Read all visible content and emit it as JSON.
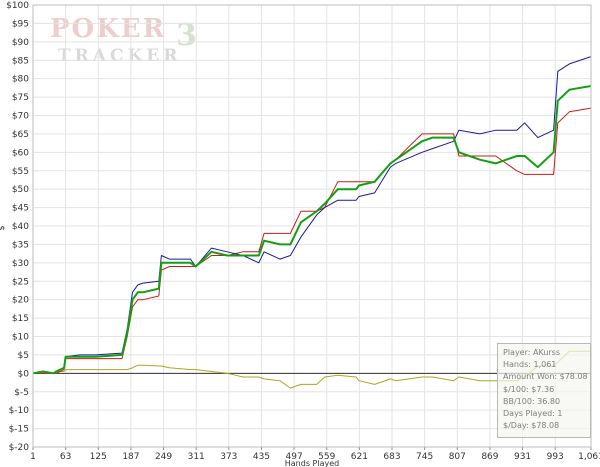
{
  "logo": {
    "top": "POKER",
    "bottom": "TRACKER",
    "version": "3"
  },
  "chart_data": {
    "type": "line",
    "xlabel": "Hands Played",
    "ylabel": "$",
    "xlim": [
      1,
      1061
    ],
    "ylim": [
      -20,
      100
    ],
    "x_ticks": [
      1,
      63,
      125,
      187,
      249,
      311,
      373,
      435,
      497,
      559,
      621,
      683,
      745,
      807,
      869,
      931,
      993,
      1061
    ],
    "y_ticks": [
      -20,
      -15,
      -10,
      -5,
      0,
      5,
      10,
      15,
      20,
      25,
      30,
      35,
      40,
      45,
      50,
      55,
      60,
      65,
      70,
      75,
      80,
      85,
      90,
      95,
      100
    ],
    "y_tick_labels": [
      "$-20",
      "$-15",
      "$-10",
      "$-5",
      "$0",
      "$5",
      "$10",
      "$15",
      "$20",
      "$25",
      "$30",
      "$35",
      "$40",
      "$45",
      "$50",
      "$55",
      "$60",
      "$65",
      "$70",
      "$75",
      "$80",
      "$85",
      "$90",
      "$95",
      "$100"
    ],
    "x_tick_labels": [
      "1",
      "63",
      "125",
      "187",
      "249",
      "311",
      "373",
      "435",
      "497",
      "559",
      "621",
      "683",
      "745",
      "807",
      "869",
      "931",
      "993",
      "1,061"
    ],
    "grid": true,
    "zero_line": true,
    "colors": {
      "blue": "#1a1a9a",
      "red": "#cc1a1a",
      "green": "#12a012",
      "olive": "#b0a61e",
      "grid": "#e3e3e3",
      "zero": "#333333"
    },
    "series": [
      {
        "key": "blue",
        "x": [
          1,
          20,
          40,
          45,
          60,
          63,
          90,
          120,
          170,
          180,
          190,
          200,
          210,
          240,
          245,
          260,
          300,
          310,
          340,
          370,
          400,
          430,
          440,
          470,
          490,
          510,
          540,
          555,
          580,
          615,
          620,
          650,
          680,
          690,
          740,
          760,
          800,
          810,
          850,
          880,
          920,
          935,
          960,
          990,
          998,
          1020,
          1061
        ],
        "y": [
          0,
          0.5,
          0,
          0.5,
          1.5,
          4.5,
          5,
          5,
          5.5,
          12,
          22,
          24,
          24.5,
          25,
          32,
          31,
          31,
          29,
          34,
          33,
          32,
          30,
          33,
          31,
          32,
          37,
          43,
          45,
          47,
          47,
          48,
          49,
          56,
          57,
          60,
          61,
          63,
          66,
          65,
          66,
          66,
          68,
          64,
          66,
          82,
          84,
          86
        ]
      },
      {
        "key": "red",
        "x": [
          1,
          20,
          40,
          45,
          60,
          63,
          90,
          120,
          170,
          180,
          190,
          200,
          210,
          240,
          245,
          260,
          300,
          310,
          340,
          370,
          400,
          430,
          440,
          470,
          490,
          510,
          540,
          555,
          580,
          615,
          620,
          650,
          680,
          690,
          740,
          760,
          800,
          810,
          850,
          880,
          920,
          935,
          960,
          990,
          998,
          1020,
          1061
        ],
        "y": [
          0,
          0,
          0,
          0,
          1,
          4,
          4,
          4,
          4,
          10,
          18,
          20,
          20,
          21,
          28,
          29,
          29,
          29,
          32,
          32,
          33,
          33,
          38,
          38,
          38,
          44,
          44,
          45,
          52,
          52,
          52,
          52,
          57,
          58,
          65,
          65,
          65,
          59,
          59,
          59,
          55,
          54,
          54,
          54,
          68,
          71,
          72
        ]
      },
      {
        "key": "green",
        "x": [
          1,
          20,
          40,
          45,
          60,
          63,
          90,
          120,
          170,
          180,
          190,
          200,
          210,
          240,
          245,
          260,
          300,
          310,
          340,
          370,
          400,
          430,
          440,
          470,
          490,
          510,
          540,
          555,
          580,
          615,
          620,
          650,
          680,
          690,
          740,
          760,
          800,
          810,
          850,
          880,
          920,
          935,
          960,
          990,
          998,
          1020,
          1061
        ],
        "y": [
          0,
          0.5,
          0,
          0.5,
          1.5,
          4.5,
          4.5,
          4.5,
          5,
          11,
          20,
          22,
          22,
          23,
          30,
          30,
          30,
          29,
          33,
          32,
          32,
          32,
          36,
          35,
          35,
          41,
          44,
          46,
          50,
          50,
          51,
          52,
          57,
          58,
          63,
          64,
          64,
          60,
          58,
          57,
          59,
          59,
          56,
          60,
          74,
          77,
          78
        ]
      },
      {
        "key": "olive",
        "x": [
          1,
          20,
          40,
          45,
          60,
          63,
          90,
          120,
          170,
          180,
          190,
          200,
          210,
          240,
          245,
          260,
          300,
          310,
          340,
          370,
          400,
          430,
          440,
          470,
          490,
          510,
          540,
          555,
          580,
          615,
          620,
          650,
          680,
          690,
          740,
          760,
          800,
          810,
          850,
          880,
          920,
          935,
          960,
          990,
          998,
          1020,
          1061
        ],
        "y": [
          0,
          0.5,
          0,
          0.5,
          0.5,
          1,
          1,
          1,
          1,
          1,
          1.5,
          2.2,
          2.2,
          2,
          2,
          1.5,
          1,
          1,
          0.5,
          0,
          -1,
          -1,
          -1.5,
          -2,
          -4,
          -3,
          -3,
          -1,
          -0.5,
          -1,
          -2,
          -3,
          -1.5,
          -2,
          -1,
          -1,
          -2,
          -1,
          -2,
          -2,
          -2,
          -1,
          2,
          2,
          3,
          6,
          6
        ]
      }
    ]
  },
  "stats": {
    "lines": [
      "Player: AKurss",
      "Hands: 1,061",
      "Amount Won: $78.08",
      "$/100: $7.36",
      "BB/100: 36.80",
      "Days Played: 1",
      "$/Day: $78.08"
    ]
  }
}
